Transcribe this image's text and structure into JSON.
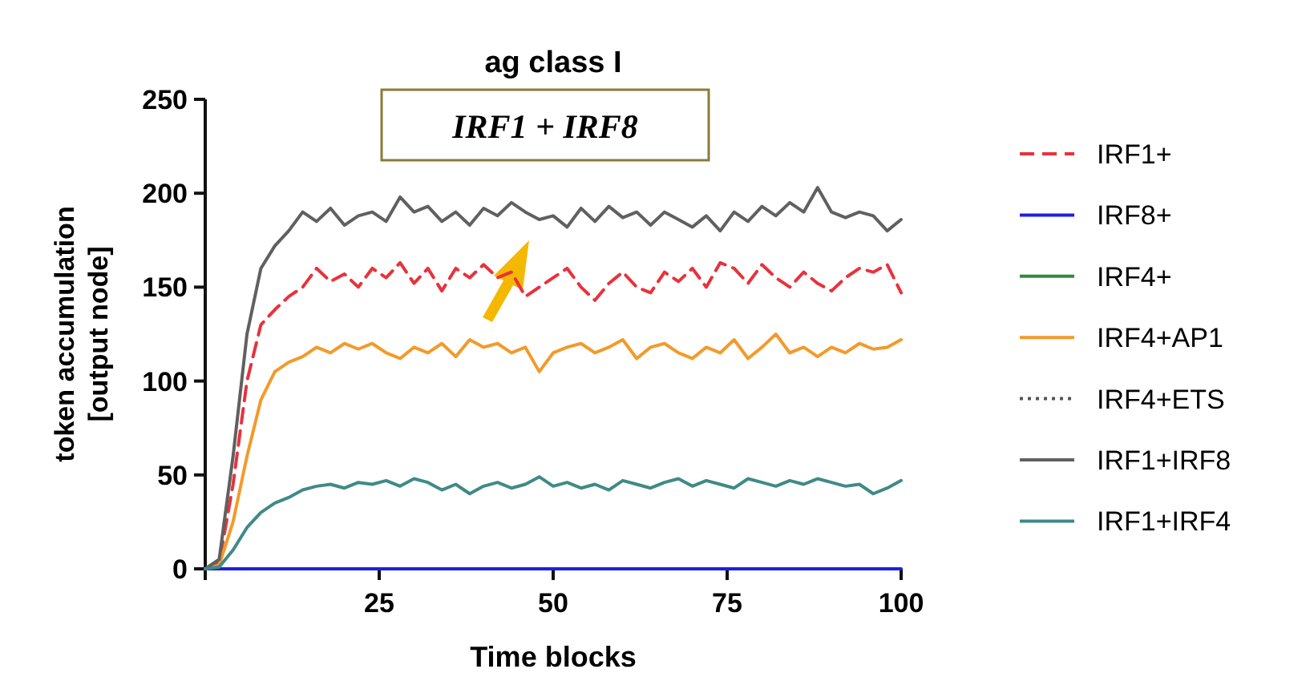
{
  "chart_data": {
    "type": "line",
    "title": "ag class I",
    "xlabel": "Time blocks",
    "ylabel": "token accumulation\n[output node]",
    "annotations": [
      "IRF1 + IRF8"
    ],
    "x": [
      0,
      2,
      4,
      6,
      8,
      10,
      12,
      14,
      16,
      18,
      20,
      22,
      24,
      26,
      28,
      30,
      32,
      34,
      36,
      38,
      40,
      42,
      44,
      46,
      48,
      50,
      52,
      54,
      56,
      58,
      60,
      62,
      64,
      66,
      68,
      70,
      72,
      74,
      76,
      78,
      80,
      82,
      84,
      86,
      88,
      90,
      92,
      94,
      96,
      98,
      100
    ],
    "xlim": [
      0,
      100
    ],
    "xticks": [
      {
        "value": 0,
        "label": null
      },
      25,
      50,
      75,
      100
    ],
    "ylim": [
      0,
      250
    ],
    "yticks": [
      0,
      50,
      100,
      150,
      200,
      250
    ],
    "grid": false,
    "legend": "right",
    "marker": "none",
    "series": [
      {
        "name": "IRF1+",
        "color": "#e8323c",
        "line_style": "dashed",
        "values": [
          0,
          3,
          45,
          100,
          130,
          138,
          145,
          150,
          160,
          153,
          157,
          150,
          160,
          155,
          163,
          152,
          160,
          148,
          160,
          155,
          162,
          155,
          158,
          145,
          150,
          155,
          160,
          150,
          143,
          152,
          158,
          150,
          147,
          158,
          153,
          160,
          150,
          163,
          160,
          152,
          162,
          155,
          150,
          158,
          152,
          148,
          155,
          160,
          158,
          162,
          147
        ]
      },
      {
        "name": "IRF8+",
        "color": "#1f1fe0",
        "values": [
          0,
          0,
          0,
          0,
          0,
          0,
          0,
          0,
          0,
          0,
          0,
          0,
          0,
          0,
          0,
          0,
          0,
          0,
          0,
          0,
          0,
          0,
          0,
          0,
          0,
          0,
          0,
          0,
          0,
          0,
          0,
          0,
          0,
          0,
          0,
          0,
          0,
          0,
          0,
          0,
          0,
          0,
          0,
          0,
          0,
          0,
          0,
          0,
          0,
          0,
          0
        ]
      },
      {
        "name": "IRF4+",
        "color": "#2e8b3a",
        "values": [
          null,
          null,
          null,
          null,
          null,
          null,
          null,
          null,
          null,
          null,
          null,
          null,
          null,
          null,
          null,
          null,
          null,
          null,
          null,
          null,
          null,
          null,
          null,
          null,
          null,
          null,
          null,
          null,
          null,
          null,
          null,
          null,
          null,
          null,
          null,
          null,
          null,
          null,
          null,
          null,
          null,
          null,
          null,
          null,
          null,
          null,
          null,
          null,
          null,
          null,
          null
        ]
      },
      {
        "name": "IRF4+AP1",
        "color": "#f39a2a",
        "values": [
          0,
          2,
          25,
          60,
          90,
          105,
          110,
          113,
          118,
          115,
          120,
          117,
          120,
          115,
          112,
          118,
          115,
          120,
          113,
          122,
          118,
          120,
          115,
          118,
          105,
          115,
          118,
          120,
          115,
          118,
          122,
          112,
          118,
          120,
          115,
          112,
          118,
          115,
          122,
          112,
          118,
          125,
          115,
          118,
          113,
          118,
          115,
          120,
          117,
          118,
          122
        ]
      },
      {
        "name": "IRF4+ETS",
        "color": "#555555",
        "line_style": "dotted",
        "values": [
          null,
          null,
          null,
          null,
          null,
          null,
          null,
          null,
          null,
          null,
          null,
          null,
          null,
          null,
          null,
          null,
          null,
          null,
          null,
          null,
          null,
          null,
          null,
          null,
          null,
          null,
          null,
          null,
          null,
          null,
          null,
          null,
          null,
          null,
          null,
          null,
          null,
          null,
          null,
          null,
          null,
          null,
          null,
          null,
          null,
          null,
          null,
          null,
          null,
          null,
          null
        ]
      },
      {
        "name": "IRF1+IRF8",
        "color": "#606060",
        "values": [
          0,
          5,
          60,
          125,
          160,
          172,
          180,
          190,
          185,
          192,
          183,
          188,
          190,
          185,
          198,
          190,
          193,
          185,
          190,
          183,
          192,
          188,
          195,
          190,
          186,
          188,
          182,
          192,
          185,
          193,
          187,
          190,
          183,
          190,
          186,
          182,
          188,
          180,
          190,
          185,
          193,
          188,
          195,
          190,
          203,
          190,
          187,
          190,
          188,
          180,
          186
        ]
      },
      {
        "name": "IRF1+IRF4",
        "color": "#3f8a87",
        "values": [
          0,
          1,
          10,
          22,
          30,
          35,
          38,
          42,
          44,
          45,
          43,
          46,
          45,
          47,
          44,
          48,
          46,
          42,
          45,
          40,
          44,
          46,
          43,
          45,
          49,
          44,
          46,
          43,
          45,
          42,
          47,
          45,
          43,
          46,
          48,
          44,
          47,
          45,
          43,
          48,
          46,
          44,
          47,
          45,
          48,
          46,
          44,
          45,
          40,
          43,
          47
        ]
      }
    ]
  }
}
